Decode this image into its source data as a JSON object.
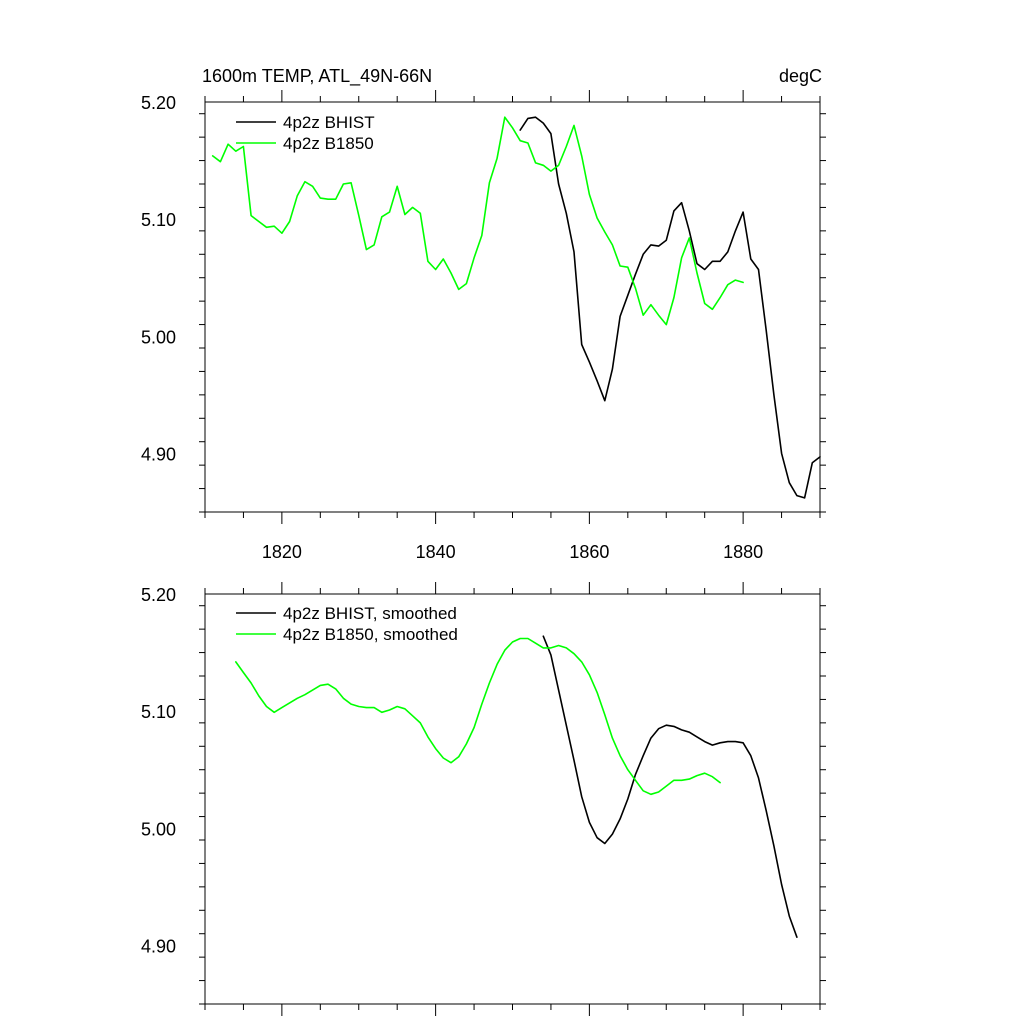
{
  "chart_data": [
    {
      "type": "line",
      "title_left": "1600m TEMP, ATL_49N-66N",
      "title_right": "degC",
      "xlim": [
        1810,
        1890
      ],
      "ylim": [
        4.85,
        5.2
      ],
      "x_major_ticks": [
        1820,
        1840,
        1860,
        1880
      ],
      "x_tick_labels": [
        "1820",
        "1840",
        "1860",
        "1880"
      ],
      "y_major_ticks": [
        4.9,
        5.0,
        5.1,
        5.2
      ],
      "y_tick_labels": [
        "4.90",
        "5.00",
        "5.10",
        "5.20"
      ],
      "series": [
        {
          "name": "4p2z BHIST",
          "color": "#000000",
          "x": [
            1851,
            1852,
            1853,
            1854,
            1855,
            1856,
            1857,
            1858,
            1859,
            1860,
            1861,
            1862,
            1863,
            1864,
            1865,
            1866,
            1867,
            1868,
            1869,
            1870,
            1871,
            1872,
            1873,
            1874,
            1875,
            1876,
            1877,
            1878,
            1879,
            1880,
            1881,
            1882,
            1883,
            1884,
            1885,
            1886,
            1887,
            1888,
            1889,
            1890
          ],
          "y": [
            5.176,
            5.186,
            5.187,
            5.182,
            5.173,
            5.13,
            5.105,
            5.072,
            4.993,
            4.978,
            4.962,
            4.945,
            4.972,
            5.017,
            5.035,
            5.053,
            5.07,
            5.078,
            5.077,
            5.082,
            5.107,
            5.114,
            5.09,
            5.062,
            5.057,
            5.064,
            5.064,
            5.072,
            5.09,
            5.106,
            5.066,
            5.057,
            5.005,
            4.95,
            4.9,
            4.875,
            4.864,
            4.862,
            4.892,
            4.897
          ]
        },
        {
          "name": "4p2z B1850",
          "color": "#00ff00",
          "x": [
            1811,
            1812,
            1813,
            1814,
            1815,
            1816,
            1817,
            1818,
            1819,
            1820,
            1821,
            1822,
            1823,
            1824,
            1825,
            1826,
            1827,
            1828,
            1829,
            1830,
            1831,
            1832,
            1833,
            1834,
            1835,
            1836,
            1837,
            1838,
            1839,
            1840,
            1841,
            1842,
            1843,
            1844,
            1845,
            1846,
            1847,
            1848,
            1849,
            1850,
            1851,
            1852,
            1853,
            1854,
            1855,
            1856,
            1857,
            1858,
            1859,
            1860,
            1861,
            1862,
            1863,
            1864,
            1865,
            1866,
            1867,
            1868,
            1869,
            1870,
            1871,
            1872,
            1873,
            1874,
            1875,
            1876,
            1877,
            1878,
            1879,
            1880
          ],
          "y": [
            5.154,
            5.149,
            5.164,
            5.158,
            5.162,
            5.103,
            5.098,
            5.093,
            5.094,
            5.088,
            5.098,
            5.12,
            5.132,
            5.128,
            5.118,
            5.117,
            5.117,
            5.13,
            5.131,
            5.103,
            5.074,
            5.078,
            5.102,
            5.106,
            5.128,
            5.104,
            5.11,
            5.105,
            5.064,
            5.057,
            5.066,
            5.054,
            5.04,
            5.045,
            5.067,
            5.086,
            5.131,
            5.152,
            5.187,
            5.178,
            5.167,
            5.165,
            5.148,
            5.146,
            5.141,
            5.146,
            5.162,
            5.18,
            5.154,
            5.121,
            5.101,
            5.089,
            5.078,
            5.06,
            5.059,
            5.041,
            5.018,
            5.027,
            5.018,
            5.01,
            5.033,
            5.067,
            5.084,
            5.054,
            5.028,
            5.023,
            5.033,
            5.044,
            5.048,
            5.046
          ]
        }
      ]
    },
    {
      "type": "line",
      "xlim": [
        1810,
        1890
      ],
      "ylim": [
        4.85,
        5.2
      ],
      "x_major_ticks": [
        1820,
        1840,
        1860,
        1880
      ],
      "y_major_ticks": [
        4.9,
        5.0,
        5.1,
        5.2
      ],
      "y_tick_labels": [
        "4.90",
        "5.00",
        "5.10",
        "5.20"
      ],
      "series": [
        {
          "name": "4p2z BHIST, smoothed",
          "color": "#000000",
          "x": [
            1854,
            1855,
            1856,
            1857,
            1858,
            1859,
            1860,
            1861,
            1862,
            1863,
            1864,
            1865,
            1866,
            1867,
            1868,
            1869,
            1870,
            1871,
            1872,
            1873,
            1874,
            1875,
            1876,
            1877,
            1878,
            1879,
            1880,
            1881,
            1882,
            1883,
            1884,
            1885,
            1886,
            1887
          ],
          "y": [
            5.164,
            5.148,
            5.118,
            5.088,
            5.058,
            5.027,
            5.005,
            4.992,
            4.987,
            4.995,
            5.008,
            5.025,
            5.046,
            5.062,
            5.077,
            5.085,
            5.088,
            5.087,
            5.084,
            5.082,
            5.078,
            5.074,
            5.071,
            5.073,
            5.074,
            5.074,
            5.073,
            5.062,
            5.043,
            5.015,
            4.985,
            4.952,
            4.925,
            4.907
          ]
        },
        {
          "name": "4p2z B1850, smoothed",
          "color": "#00ff00",
          "x": [
            1814,
            1815,
            1816,
            1817,
            1818,
            1819,
            1820,
            1821,
            1822,
            1823,
            1824,
            1825,
            1826,
            1827,
            1828,
            1829,
            1830,
            1831,
            1832,
            1833,
            1834,
            1835,
            1836,
            1837,
            1838,
            1839,
            1840,
            1841,
            1842,
            1843,
            1844,
            1845,
            1846,
            1847,
            1848,
            1849,
            1850,
            1851,
            1852,
            1853,
            1854,
            1855,
            1856,
            1857,
            1858,
            1859,
            1860,
            1861,
            1862,
            1863,
            1864,
            1865,
            1866,
            1867,
            1868,
            1869,
            1870,
            1871,
            1872,
            1873,
            1874,
            1875,
            1876,
            1877
          ],
          "y": [
            5.142,
            5.133,
            5.124,
            5.113,
            5.104,
            5.099,
            5.103,
            5.107,
            5.111,
            5.114,
            5.118,
            5.122,
            5.123,
            5.119,
            5.111,
            5.106,
            5.104,
            5.103,
            5.103,
            5.099,
            5.101,
            5.104,
            5.102,
            5.096,
            5.09,
            5.078,
            5.068,
            5.06,
            5.056,
            5.061,
            5.072,
            5.086,
            5.106,
            5.124,
            5.14,
            5.152,
            5.159,
            5.162,
            5.162,
            5.158,
            5.154,
            5.154,
            5.156,
            5.154,
            5.149,
            5.142,
            5.131,
            5.116,
            5.097,
            5.077,
            5.062,
            5.05,
            5.041,
            5.032,
            5.029,
            5.031,
            5.036,
            5.041,
            5.041,
            5.042,
            5.045,
            5.047,
            5.044,
            5.039
          ]
        }
      ]
    }
  ]
}
